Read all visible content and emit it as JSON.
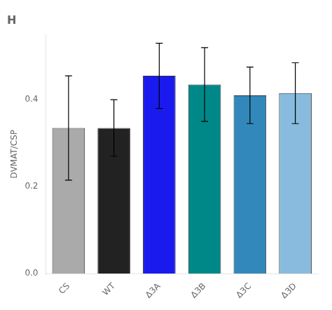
{
  "chart_data": {
    "type": "bar",
    "title": "H",
    "categories": [
      "CS",
      "WT",
      "Δ3A",
      "Δ3B",
      "Δ3C",
      "Δ3D"
    ],
    "values": [
      0.335,
      0.335,
      0.455,
      0.435,
      0.41,
      0.415
    ],
    "errors": [
      0.12,
      0.065,
      0.075,
      0.085,
      0.065,
      0.07
    ],
    "colors": [
      "#aaaaaa",
      "#222222",
      "#1a1aee",
      "#008888",
      "#3388bb",
      "#88bbdd"
    ],
    "ylabel": "DVMAT/CSP",
    "ylim": [
      0.0,
      0.55
    ],
    "yticks": [
      {
        "value": 0.0,
        "label": "0.0"
      },
      0.2,
      0.4
    ],
    "grid": false
  }
}
